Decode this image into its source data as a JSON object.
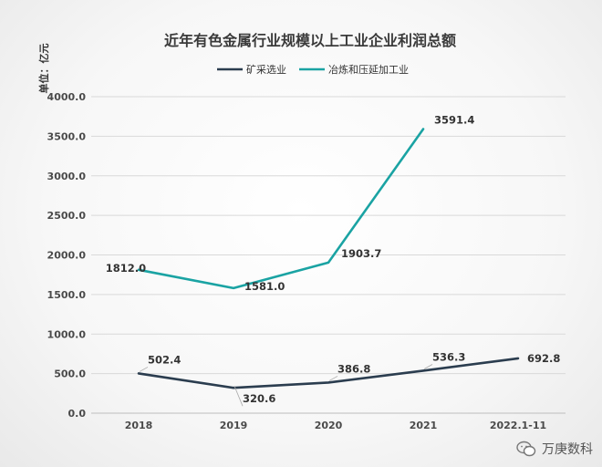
{
  "chart_data": {
    "type": "line",
    "title": "近年有色金属行业规模以上工业企业利润总额",
    "ylabel": "单位：亿元",
    "categories": [
      "2018",
      "2019",
      "2020",
      "2021",
      "2022.1-11"
    ],
    "ylim": [
      0,
      4000
    ],
    "yticks": [
      "0.0",
      "500.0",
      "1000.0",
      "1500.0",
      "2000.0",
      "2500.0",
      "3000.0",
      "3500.0",
      "4000.0"
    ],
    "legend_position": "top",
    "series": [
      {
        "name": "矿采选业",
        "color": "#2b3d4f",
        "values": [
          502.4,
          320.6,
          386.8,
          536.3,
          692.8
        ],
        "labels": [
          "502.4",
          "320.6",
          "386.8",
          "536.3",
          "692.8"
        ]
      },
      {
        "name": "冶炼和压延加工业",
        "color": "#1aa3a3",
        "values": [
          1812.0,
          1581.0,
          1903.7,
          3591.4,
          null
        ],
        "labels": [
          "1812.0",
          "1581.0",
          "1903.7",
          "3591.4",
          null
        ]
      }
    ]
  },
  "watermark": {
    "text": "万庚数科"
  }
}
